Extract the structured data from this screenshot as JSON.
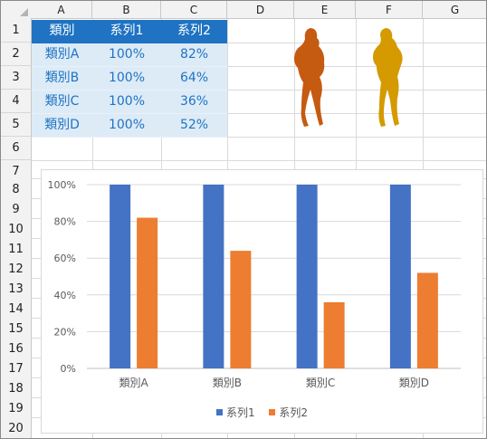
{
  "sheet": {
    "columns": [
      "A",
      "B",
      "C",
      "D",
      "E",
      "F",
      "G"
    ],
    "rows": [
      "1",
      "2",
      "3",
      "4",
      "5",
      "6",
      "7",
      "8",
      "9",
      "10",
      "11",
      "12",
      "13",
      "14",
      "15",
      "16",
      "17",
      "18",
      "19",
      "20"
    ]
  },
  "table": {
    "headers": [
      "類別",
      "系列1",
      "系列2"
    ],
    "rows": [
      [
        "類別A",
        "100%",
        "82%"
      ],
      [
        "類別B",
        "100%",
        "64%"
      ],
      [
        "類別C",
        "100%",
        "36%"
      ],
      [
        "類別D",
        "100%",
        "52%"
      ]
    ]
  },
  "colors": {
    "series1": "#4472c4",
    "series2": "#ed7d31",
    "header_fill": "#1f73c2",
    "body_fill": "#ddebf7",
    "figure1": "#c55a11",
    "figure2": "#d49a00"
  },
  "chart_data": {
    "type": "bar",
    "categories": [
      "類別A",
      "類別B",
      "類別C",
      "類別D"
    ],
    "series": [
      {
        "name": "系列1",
        "values": [
          100,
          100,
          100,
          100
        ]
      },
      {
        "name": "系列2",
        "values": [
          82,
          64,
          36,
          52
        ]
      }
    ],
    "ylim": [
      0,
      100
    ],
    "yticks": [
      "0%",
      "20%",
      "40%",
      "60%",
      "80%",
      "100%"
    ],
    "title": "",
    "legend": "bottom-center"
  }
}
